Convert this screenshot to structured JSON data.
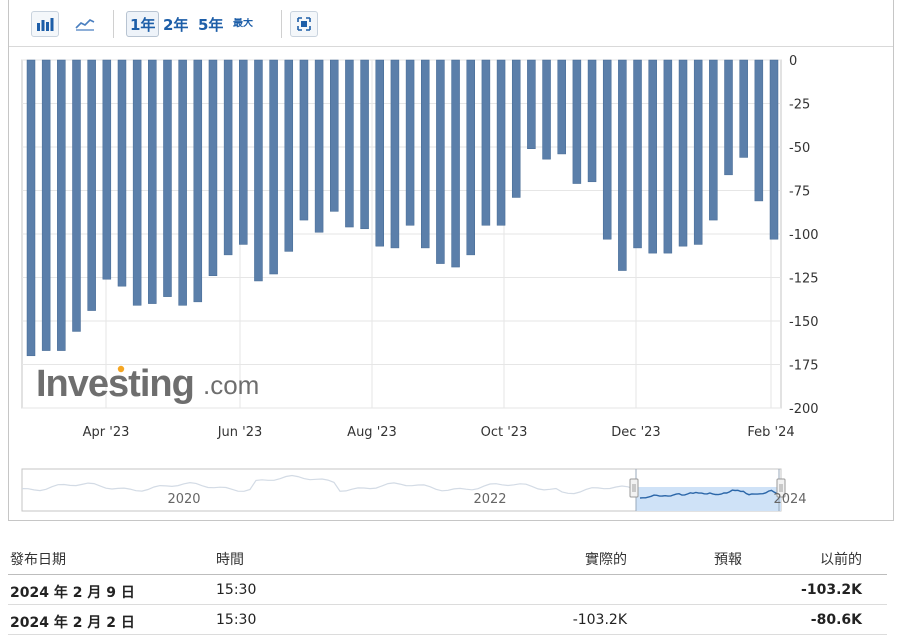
{
  "toolbar": {
    "bar_icon": "bar-chart-icon",
    "line_icon": "line-chart-icon",
    "range_1y": "1年",
    "range_2y": "2年",
    "range_5y": "5年",
    "range_max": "最大",
    "fullscreen_icon": "expand-icon"
  },
  "watermark": {
    "brand": "Investing",
    "suffix": ".com",
    "dot_color": "#f5a623"
  },
  "colors": {
    "bar": "#5b7faa",
    "bar_edge": "#436893",
    "navigator_fill": "#cfe2f7",
    "navigator_line": "#2b66a8"
  },
  "chart_data": {
    "type": "bar",
    "title": "",
    "xlabel": "",
    "ylabel": "",
    "ylim": [
      -200,
      0
    ],
    "yticks": [
      0,
      -25,
      -50,
      -75,
      -100,
      -125,
      -150,
      -175,
      -200
    ],
    "y_axis_side": "right",
    "grid": true,
    "x_tick_labels": [
      "Apr '23",
      "Jun '23",
      "Aug '23",
      "Oct '23",
      "Dec '23",
      "Feb '24"
    ],
    "values": [
      -170,
      -167,
      -167,
      -156,
      -144,
      -126,
      -130,
      -141,
      -140,
      -136,
      -141,
      -139,
      -124,
      -112,
      -106,
      -127,
      -123,
      -110,
      -92,
      -99,
      -87,
      -96,
      -97,
      -107,
      -108,
      -95,
      -108,
      -117,
      -119,
      -112,
      -95,
      -95,
      -79,
      -51,
      -57,
      -54,
      -71,
      -70,
      -103,
      -121,
      -108,
      -111,
      -111,
      -107,
      -106,
      -92,
      -66,
      -56,
      -81,
      -103
    ],
    "navigator": {
      "labels": [
        "2020",
        "2022",
        "2024"
      ]
    }
  },
  "table": {
    "headers": {
      "date": "發布日期",
      "time": "時間",
      "actual": "實際的",
      "forecast": "預報",
      "previous": "以前的"
    },
    "rows": [
      {
        "date": "2024 年 2 月 9 日",
        "time": "15:30",
        "actual": "",
        "forecast": "",
        "previous": "-103.2K"
      },
      {
        "date": "2024 年 2 月 2 日",
        "time": "15:30",
        "actual": "-103.2K",
        "forecast": "",
        "previous": "-80.6K"
      }
    ]
  }
}
